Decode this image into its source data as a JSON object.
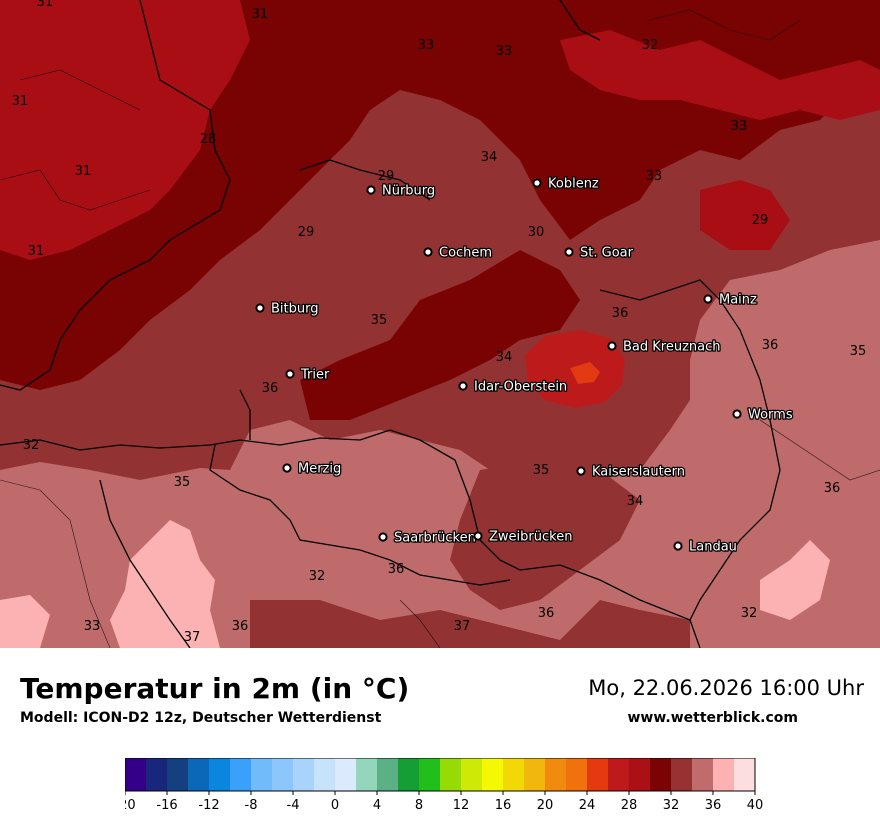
{
  "title": "Temperatur in 2m (in °C)",
  "model": "Modell: ICON-D2 12z, Deutscher Wetterdienst",
  "datetime": "Mo, 22.06.2026 16:00 Uhr",
  "website": "www.wetterblick.com",
  "cities": [
    {
      "name": "Nürburg"
    },
    {
      "name": "Koblenz"
    },
    {
      "name": "Cochem"
    },
    {
      "name": "St. Goar"
    },
    {
      "name": "Bitburg"
    },
    {
      "name": "Mainz"
    },
    {
      "name": "Bad Kreuznach"
    },
    {
      "name": "Trier"
    },
    {
      "name": "Idar-Oberstein"
    },
    {
      "name": "Worms"
    },
    {
      "name": "Merzig"
    },
    {
      "name": "Kaiserslautern"
    },
    {
      "name": "Saarbrücken"
    },
    {
      "name": "Zweibrücken"
    },
    {
      "name": "Landau"
    }
  ],
  "isolabels": [
    "31",
    "31",
    "33",
    "33",
    "32",
    "31",
    "28",
    "34",
    "33",
    "31",
    "29",
    "33",
    "29",
    "30",
    "29",
    "31",
    "35",
    "36",
    "34",
    "36",
    "35",
    "36",
    "35",
    "32",
    "35",
    "34",
    "36",
    "32",
    "36",
    "36",
    "37",
    "32",
    "33",
    "37",
    "36"
  ],
  "colorbar": {
    "ticks": [
      "-20",
      "-16",
      "-12",
      "-8",
      "-4",
      "0",
      "4",
      "8",
      "12",
      "16",
      "20",
      "24",
      "28",
      "32",
      "36",
      "40"
    ],
    "colors": [
      "#340087",
      "#18277b",
      "#14407f",
      "#0b68b8",
      "#0a86df",
      "#3ba0fa",
      "#71bbfb",
      "#8dc6fa",
      "#a9d3fa",
      "#c7e2fb",
      "#dbeafd",
      "#94d6bb",
      "#5bb185",
      "#149e35",
      "#22be1a",
      "#96db05",
      "#cdea07",
      "#f4f803",
      "#f2d804",
      "#f1b70d",
      "#f18b0f",
      "#f1710c",
      "#e5390f",
      "#bf1a1b",
      "#ab1016",
      "#7b0303",
      "#963232",
      "#c16c6c",
      "#fcb2b2",
      "#fddede"
    ]
  },
  "colors": {
    "t28_30": "#a80e14",
    "t30_32": "#790303",
    "t32_34": "#933232",
    "t34_36": "#c06b6b",
    "t36_38": "#fcb2b2",
    "t24_26": "#bd1a1b",
    "t26_28": "#e33a12"
  }
}
